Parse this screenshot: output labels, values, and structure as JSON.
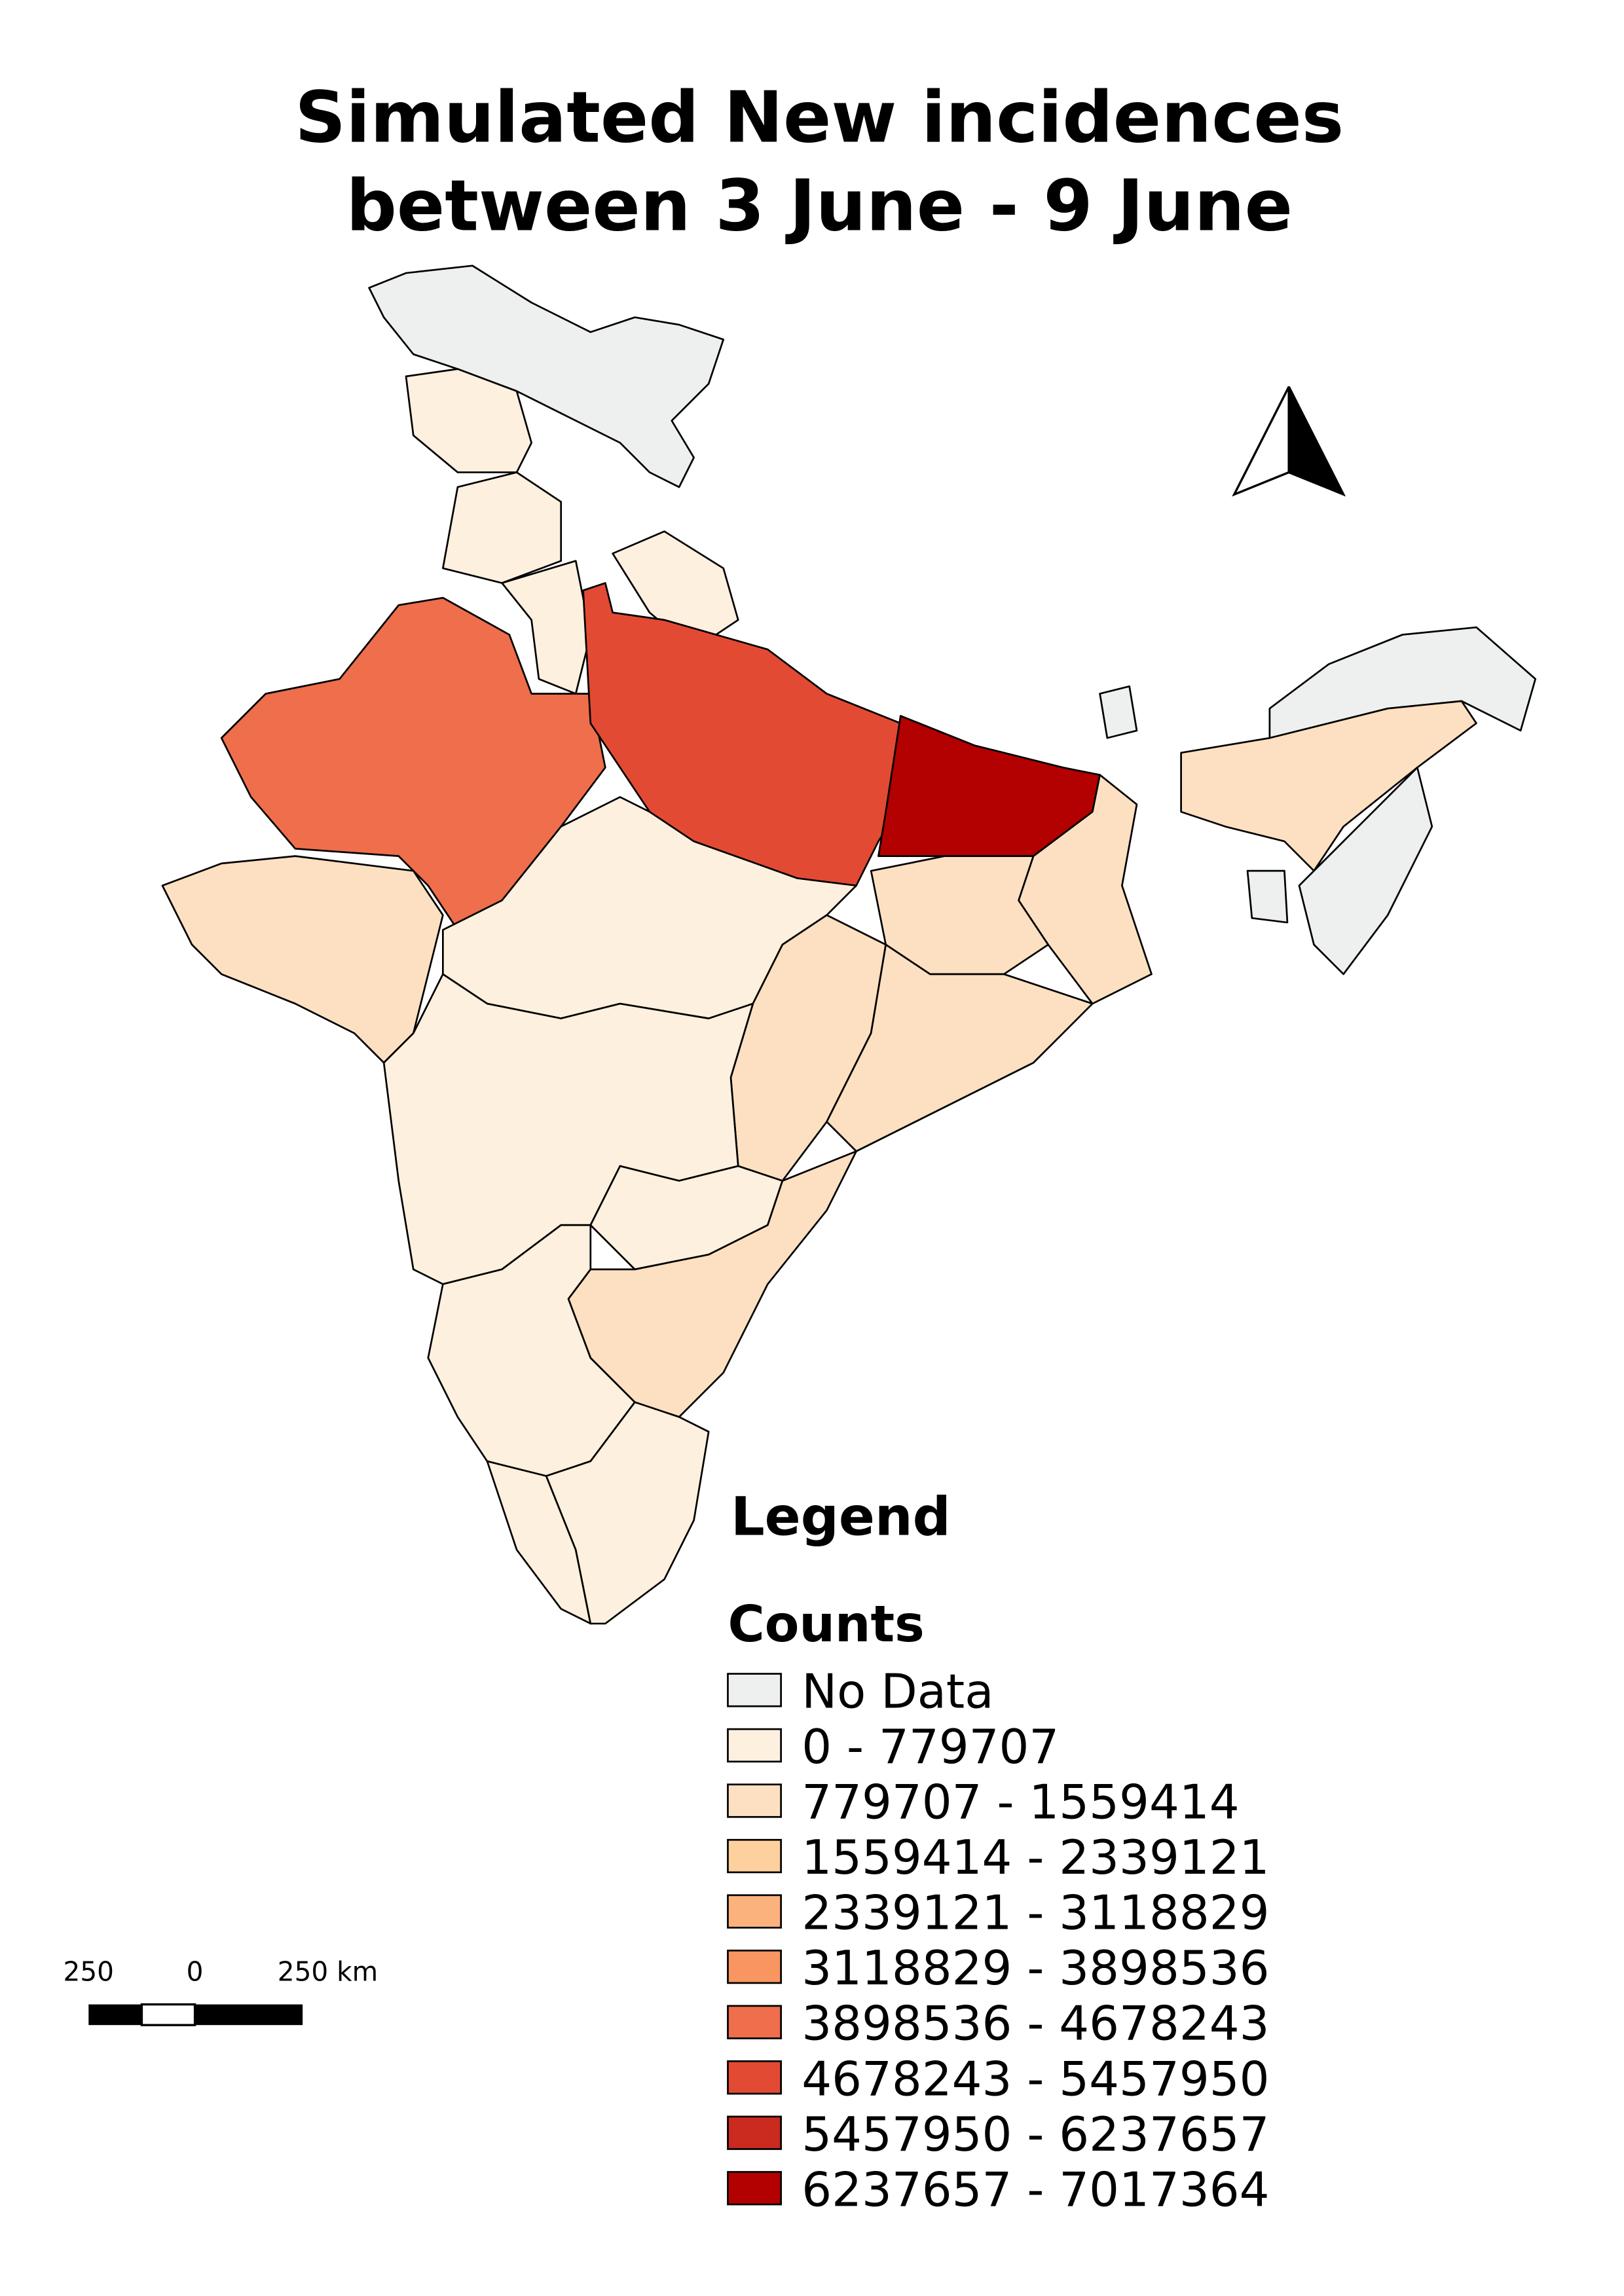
{
  "title": [
    "Simulated New incidences",
    "between 3 June - 9 June"
  ],
  "legend": {
    "title": "Legend",
    "subtitle": "Counts",
    "items": [
      {
        "label": "No Data",
        "color": "#eef0ef"
      },
      {
        "label": " 0 - 779707",
        "color": "#fef0de"
      },
      {
        "label": "779707 - 1559414",
        "color": "#fde0c1"
      },
      {
        "label": "1559414 - 2339121",
        "color": "#fdd09d"
      },
      {
        "label": "2339121 - 3118829",
        "color": "#fcb27c"
      },
      {
        "label": "3118829 - 3898536",
        "color": "#f99560"
      },
      {
        "label": "3898536 - 4678243",
        "color": "#ef6e4b"
      },
      {
        "label": "4678243 - 5457950",
        "color": "#e34a33"
      },
      {
        "label": "5457950 - 6237657",
        "color": "#cb2a1f"
      },
      {
        "label": "6237657 - 7017364",
        "color": "#b30000"
      }
    ]
  },
  "scale_bar": {
    "labels": [
      "250",
      "0",
      "250 km"
    ]
  }
}
